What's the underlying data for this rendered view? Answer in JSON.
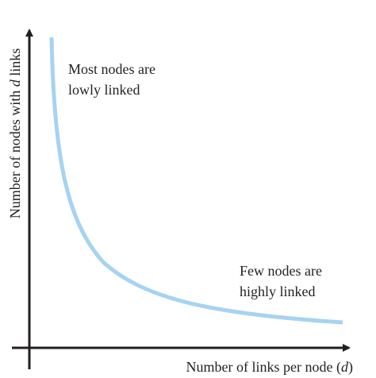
{
  "y_axis_label": {
    "parts": [
      "Number of nodes with ",
      "d",
      " links"
    ]
  },
  "x_axis_label": {
    "parts": [
      "Number of links per node (",
      "d",
      ")"
    ]
  },
  "annotations": [
    {
      "lines": [
        "Most nodes are",
        "lowly linked"
      ]
    },
    {
      "lines": [
        "Few nodes are",
        "highly linked"
      ]
    }
  ]
}
